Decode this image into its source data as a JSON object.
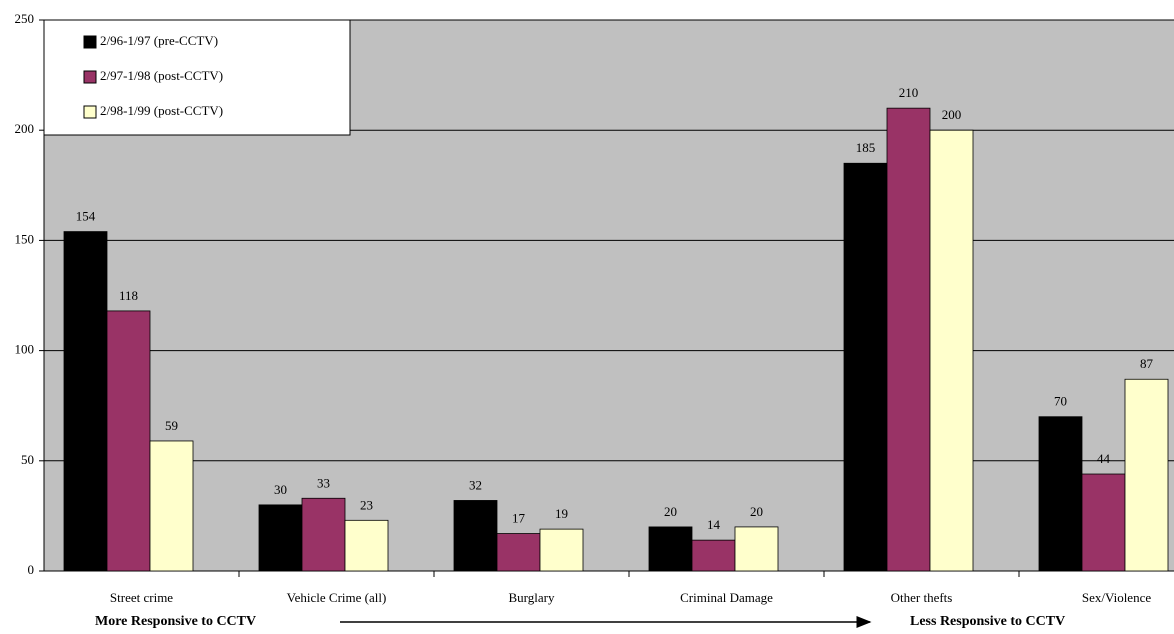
{
  "chart_data": {
    "type": "bar",
    "categories": [
      "Street crime",
      "Vehicle Crime (all)",
      "Burglary",
      "Criminal Damage",
      "Other thefts",
      "Sex/Violence"
    ],
    "series": [
      {
        "name": "2/96-1/97 (pre-CCTV)",
        "color": "#000000",
        "values": [
          154,
          30,
          32,
          20,
          185,
          70
        ]
      },
      {
        "name": "2/97-1/98 (post-CCTV)",
        "color": "#993366",
        "values": [
          118,
          33,
          17,
          14,
          210,
          44
        ]
      },
      {
        "name": "2/98-1/99 (post-CCTV)",
        "color": "#ffffcc",
        "values": [
          59,
          23,
          19,
          20,
          200,
          87
        ]
      }
    ],
    "ylim": [
      0,
      250
    ],
    "yticks": [
      0,
      50,
      100,
      150,
      200,
      250
    ],
    "grid": true,
    "legend": "top-left",
    "annotations": [
      "More Responsive to CCTV",
      "Less Responsive to CCTV"
    ]
  }
}
